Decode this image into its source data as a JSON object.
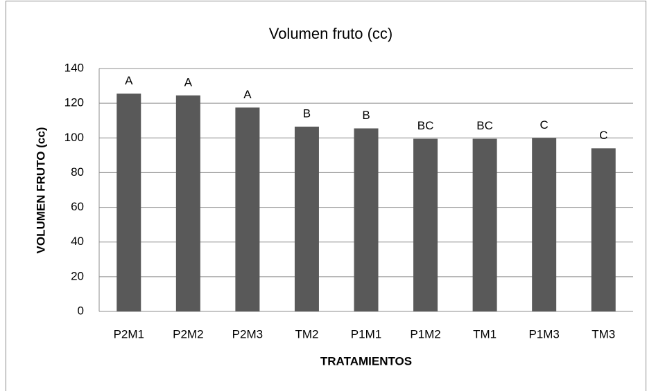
{
  "chart_data": {
    "type": "bar",
    "title": "Volumen fruto (cc)",
    "y_label": "VOLUMEN FRUTO (cc)",
    "x_label": "TRATAMIENTOS",
    "categories": [
      "P2M1",
      "P2M2",
      "P2M3",
      "TM2",
      "P1M1",
      "P1M2",
      "TM1",
      "P1M3",
      "TM3"
    ],
    "values": [
      125.5,
      124.5,
      117.5,
      106.5,
      105.5,
      99.5,
      99.5,
      100,
      94
    ],
    "annotations": [
      "A",
      "A",
      "A",
      "B",
      "B",
      "BC",
      "BC",
      "C",
      "C"
    ],
    "color": "#595959",
    "ylim": [
      0,
      140
    ],
    "yticks": [
      0,
      20,
      40,
      60,
      80,
      100,
      120,
      140
    ],
    "grid": true
  }
}
